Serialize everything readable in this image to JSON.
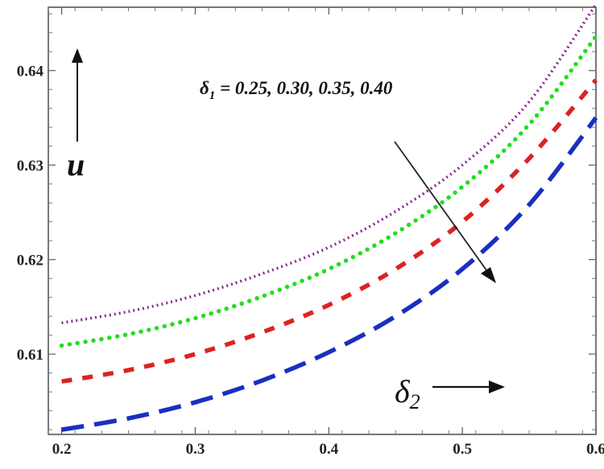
{
  "chart_data": {
    "type": "line",
    "xlim": [
      0.19,
      0.6
    ],
    "ylim": [
      0.6015,
      0.6467
    ],
    "x_ticks": [
      "0.2",
      "0.3",
      "0.4",
      "0.5",
      "0.6"
    ],
    "x_tick_values": [
      0.2,
      0.3,
      0.4,
      0.5,
      0.6
    ],
    "y_ticks": [
      "0.61",
      "0.62",
      "0.63",
      "0.64"
    ],
    "y_tick_values": [
      0.61,
      0.62,
      0.63,
      0.64
    ],
    "xlabel_base": "δ",
    "xlabel_sub": "2",
    "ylabel": "u",
    "annotation": {
      "symbol": "δ",
      "sub": "1",
      "text": " = 0.25, 0.30, 0.35, 0.40"
    },
    "x": [
      0.2,
      0.25,
      0.3,
      0.35,
      0.4,
      0.45,
      0.5,
      0.55,
      0.6
    ],
    "series": [
      {
        "values": [
          0.6133,
          0.6145,
          0.6162,
          0.6185,
          0.6213,
          0.6251,
          0.63,
          0.6367,
          0.647
        ],
        "color": "#8b2a8b",
        "dash": "dotted-fine"
      },
      {
        "values": [
          0.6109,
          0.6121,
          0.6138,
          0.6161,
          0.619,
          0.6228,
          0.6277,
          0.6343,
          0.6436
        ],
        "color": "#22dd22",
        "dash": "dotted"
      },
      {
        "values": [
          0.6071,
          0.6083,
          0.61,
          0.6123,
          0.6152,
          0.619,
          0.624,
          0.6307,
          0.639
        ],
        "color": "#dd2222",
        "dash": "dashed"
      },
      {
        "values": [
          0.602,
          0.6032,
          0.6049,
          0.6072,
          0.6102,
          0.614,
          0.619,
          0.6258,
          0.635
        ],
        "color": "#1a2fbf",
        "dash": "long-dashed"
      }
    ]
  }
}
